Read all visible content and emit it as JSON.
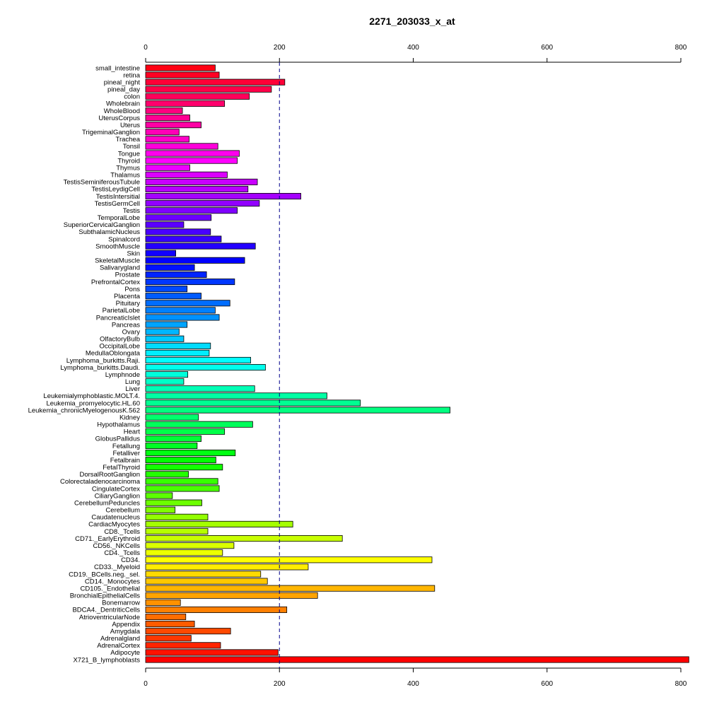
{
  "chart_data": {
    "type": "bar",
    "orientation": "horizontal",
    "title": "2271_203033_x_at",
    "xlabel": "",
    "ylabel": "",
    "xlim": [
      0,
      800
    ],
    "xticks": [
      0,
      200,
      400,
      600,
      800
    ],
    "reference_line": 200,
    "grid": false,
    "legend": "none",
    "categories": [
      "small_intestine",
      "retina",
      "pineal_night",
      "pineal_day",
      "colon",
      "Wholebrain",
      "WholeBlood",
      "UterusCorpus",
      "Uterus",
      "TrigeminalGanglion",
      "Trachea",
      "Tonsil",
      "Tongue",
      "Thyroid",
      "Thymus",
      "Thalamus",
      "TestisSeminiferousTubule",
      "TestisLeydigCell",
      "TestisIntersitial",
      "TestisGermCell",
      "Testis",
      "TemporalLobe",
      "SuperiorCervicalGanglion",
      "SubthalamicNucleus",
      "Spinalcord",
      "SmoothMuscle",
      "Skin",
      "SkeletalMuscle",
      "Salivarygland",
      "Prostate",
      "PrefrontalCortex",
      "Pons",
      "Placenta",
      "Pituitary",
      "ParietalLobe",
      "PancreaticIslet",
      "Pancreas",
      "Ovary",
      "OlfactoryBulb",
      "OccipitalLobe",
      "MedullaOblongata",
      "Lymphoma_burkitts.Raji.",
      "Lymphoma_burkitts.Daudi.",
      "Lymphnode",
      "Lung",
      "Liver",
      "Leukemialymphoblastic.MOLT.4.",
      "Leukemia_promyelocytic.HL.60",
      "Leukemia_chronicMyelogenousK.562",
      "Kidney",
      "Hypothalamus",
      "Heart",
      "GlobusPallidus",
      "Fetallung",
      "Fetalliver",
      "Fetalbrain",
      "FetalThyroid",
      "DorsalRootGanglion",
      "Colorectaladenocarcinoma",
      "CingulateCortex",
      "CiliaryGanglion",
      "CerebellumPeduncles",
      "Cerebellum",
      "Caudatenucleus",
      "CardiacMyocytes",
      "CD8._Tcells",
      "CD71._EarlyErythroid",
      "CD56._NKCells",
      "CD4._Tcells",
      "CD34.",
      "CD33._Myeloid",
      "CD19._BCells.neg._sel.",
      "CD14._Monocytes",
      "CD105._Endothelial",
      "BronchialEpithelialCells",
      "Bonemarrow",
      "BDCA4._DentriticCells",
      "AtrioventricularNode",
      "Appendix",
      "Amygdala",
      "Adrenalgland",
      "AdrenalCortex",
      "Adipocyte",
      "X721_B_lymphoblasts"
    ],
    "values": [
      104,
      110,
      208,
      188,
      155,
      118,
      55,
      66,
      83,
      50,
      65,
      108,
      140,
      137,
      66,
      122,
      167,
      153,
      232,
      170,
      137,
      98,
      57,
      97,
      113,
      164,
      45,
      148,
      73,
      91,
      133,
      62,
      83,
      126,
      104,
      110,
      62,
      50,
      57,
      97,
      95,
      157,
      179,
      63,
      57,
      163,
      271,
      321,
      455,
      79,
      160,
      118,
      83,
      77,
      134,
      105,
      115,
      64,
      108,
      110,
      40,
      84,
      44,
      93,
      220,
      93,
      294,
      132,
      115,
      428,
      243,
      172,
      182,
      432,
      257,
      52,
      211,
      60,
      73,
      127,
      68,
      112,
      198,
      812
    ]
  }
}
